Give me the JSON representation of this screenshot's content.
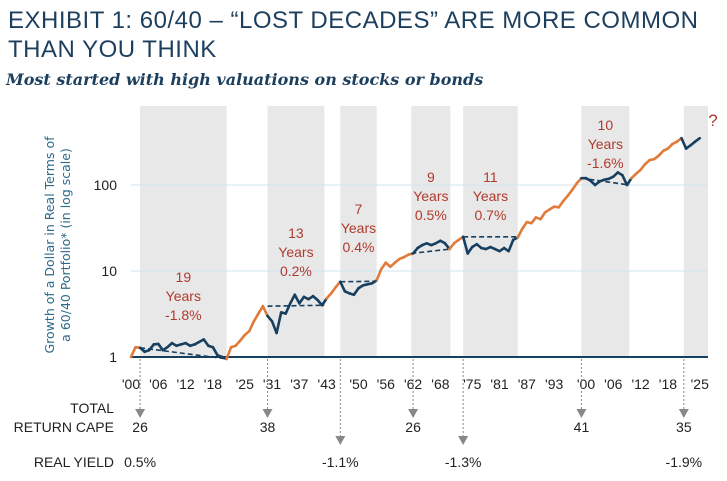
{
  "title": "EXHIBIT 1: 60/40 – “LOST DECADES” ARE MORE COMMON THAN YOU THINK",
  "subtitle": "Most started with high valuations on stocks or bonds",
  "chart_data": {
    "type": "line",
    "title": "EXHIBIT 1: 60/40 – “LOST DECADES” ARE MORE COMMON THAN YOU THINK",
    "ylabel_lines": [
      "Growth of a Dollar in Real Terms of",
      "a 60/40 Portfolio* (in log scale)"
    ],
    "yscale": "log",
    "ylim": [
      1,
      830
    ],
    "xlim": [
      1900,
      2027
    ],
    "yticks": [
      {
        "v": 1,
        "label": "1"
      },
      {
        "v": 10,
        "label": "10"
      },
      {
        "v": 100,
        "label": "100"
      }
    ],
    "xticks": [
      {
        "yr": 1900,
        "label": "'00"
      },
      {
        "yr": 1906,
        "label": "'06"
      },
      {
        "yr": 1912,
        "label": "'12"
      },
      {
        "yr": 1918,
        "label": "'18"
      },
      {
        "yr": 1925,
        "label": "'25"
      },
      {
        "yr": 1931,
        "label": "'31"
      },
      {
        "yr": 1937,
        "label": "'37"
      },
      {
        "yr": 1943,
        "label": "'43"
      },
      {
        "yr": 1950,
        "label": "'50"
      },
      {
        "yr": 1956,
        "label": "'56"
      },
      {
        "yr": 1962,
        "label": "'62"
      },
      {
        "yr": 1968,
        "label": "'68"
      },
      {
        "yr": 1975,
        "label": "'75"
      },
      {
        "yr": 1981,
        "label": "'81"
      },
      {
        "yr": 1987,
        "label": "'87"
      },
      {
        "yr": 1993,
        "label": "'93"
      },
      {
        "yr": 2000,
        "label": "'00"
      },
      {
        "yr": 2006,
        "label": "'06"
      },
      {
        "yr": 2012,
        "label": "'12"
      },
      {
        "yr": 2018,
        "label": "'18"
      },
      {
        "yr": 2025,
        "label": "'25"
      }
    ],
    "colors": {
      "growth": "#e07b39",
      "lost": "#173f5f",
      "shade": "#e8e8e8",
      "grid": "#cfe3ee",
      "annotation": "#b03a2e",
      "arrow": "#888888"
    },
    "series": [
      {
        "name": "60/40 portfolio (real, growth of $1)",
        "points": [
          [
            1900,
            1.0
          ],
          [
            1901,
            1.3
          ],
          [
            1902,
            1.28
          ],
          [
            1903,
            1.15
          ],
          [
            1904,
            1.2
          ],
          [
            1905,
            1.4
          ],
          [
            1906,
            1.42
          ],
          [
            1907,
            1.2
          ],
          [
            1908,
            1.3
          ],
          [
            1909,
            1.45
          ],
          [
            1910,
            1.35
          ],
          [
            1911,
            1.4
          ],
          [
            1912,
            1.45
          ],
          [
            1913,
            1.35
          ],
          [
            1914,
            1.4
          ],
          [
            1915,
            1.5
          ],
          [
            1916,
            1.6
          ],
          [
            1917,
            1.35
          ],
          [
            1918,
            1.3
          ],
          [
            1919,
            1.05
          ],
          [
            1920,
            1.0
          ],
          [
            1921,
            0.95
          ],
          [
            1922,
            1.3
          ],
          [
            1923,
            1.35
          ],
          [
            1924,
            1.55
          ],
          [
            1925,
            1.8
          ],
          [
            1926,
            2.0
          ],
          [
            1927,
            2.6
          ],
          [
            1928,
            3.2
          ],
          [
            1929,
            3.9
          ],
          [
            1930,
            3.0
          ],
          [
            1931,
            2.6
          ],
          [
            1932,
            1.9
          ],
          [
            1933,
            3.3
          ],
          [
            1934,
            3.2
          ],
          [
            1935,
            4.2
          ],
          [
            1936,
            5.3
          ],
          [
            1937,
            4.2
          ],
          [
            1938,
            5.0
          ],
          [
            1939,
            4.7
          ],
          [
            1940,
            5.1
          ],
          [
            1941,
            4.6
          ],
          [
            1942,
            4.0
          ],
          [
            1943,
            4.8
          ],
          [
            1944,
            5.5
          ],
          [
            1945,
            6.5
          ],
          [
            1946,
            7.5
          ],
          [
            1947,
            5.8
          ],
          [
            1948,
            5.5
          ],
          [
            1949,
            5.3
          ],
          [
            1950,
            6.3
          ],
          [
            1951,
            6.8
          ],
          [
            1952,
            7.0
          ],
          [
            1953,
            7.2
          ],
          [
            1954,
            7.8
          ],
          [
            1955,
            10.5
          ],
          [
            1956,
            12.5
          ],
          [
            1957,
            11.2
          ],
          [
            1958,
            12.5
          ],
          [
            1959,
            13.8
          ],
          [
            1960,
            14.5
          ],
          [
            1961,
            15.5
          ],
          [
            1962,
            16.0
          ],
          [
            1963,
            18.5
          ],
          [
            1964,
            20.0
          ],
          [
            1965,
            21.0
          ],
          [
            1966,
            20.0
          ],
          [
            1967,
            21.0
          ],
          [
            1968,
            22.5
          ],
          [
            1969,
            21.0
          ],
          [
            1970,
            18.0
          ],
          [
            1971,
            21.0
          ],
          [
            1972,
            23.0
          ],
          [
            1973,
            25.0
          ],
          [
            1974,
            16.0
          ],
          [
            1975,
            19.0
          ],
          [
            1976,
            20.5
          ],
          [
            1977,
            18.5
          ],
          [
            1978,
            18.0
          ],
          [
            1979,
            19.0
          ],
          [
            1980,
            18.0
          ],
          [
            1981,
            17.0
          ],
          [
            1982,
            18.5
          ],
          [
            1983,
            17.0
          ],
          [
            1984,
            23.0
          ],
          [
            1985,
            24.5
          ],
          [
            1986,
            31.0
          ],
          [
            1987,
            37.0
          ],
          [
            1988,
            36.0
          ],
          [
            1989,
            42.0
          ],
          [
            1990,
            40.0
          ],
          [
            1991,
            48.0
          ],
          [
            1992,
            52.0
          ],
          [
            1993,
            56.0
          ],
          [
            1994,
            55.0
          ],
          [
            1995,
            65.0
          ],
          [
            1996,
            75.0
          ],
          [
            1997,
            88.0
          ],
          [
            1998,
            105.0
          ],
          [
            1999,
            120.0
          ],
          [
            2000,
            120.0
          ],
          [
            2001,
            112.0
          ],
          [
            2002,
            100.0
          ],
          [
            2003,
            110.0
          ],
          [
            2004,
            115.0
          ],
          [
            2005,
            118.0
          ],
          [
            2006,
            125.0
          ],
          [
            2007,
            140.0
          ],
          [
            2008,
            130.0
          ],
          [
            2009,
            100.0
          ],
          [
            2010,
            120.0
          ],
          [
            2011,
            135.0
          ],
          [
            2012,
            150.0
          ],
          [
            2013,
            175.0
          ],
          [
            2014,
            195.0
          ],
          [
            2015,
            200.0
          ],
          [
            2016,
            220.0
          ],
          [
            2017,
            250.0
          ],
          [
            2018,
            265.0
          ],
          [
            2019,
            300.0
          ],
          [
            2020,
            320.0
          ],
          [
            2021,
            350.0
          ],
          [
            2022,
            265.0
          ],
          [
            2023,
            290.0
          ],
          [
            2024,
            320.0
          ],
          [
            2025,
            350.0
          ]
        ]
      }
    ],
    "lost_decades": [
      {
        "start": 1902,
        "end": 1921,
        "years": "19",
        "label_years": "Years",
        "rate": "-1.8%",
        "v_start": 1.28,
        "v_end": 0.95
      },
      {
        "start": 1930,
        "end": 1942.5,
        "years": "13",
        "label_years": "Years",
        "rate": "0.2%",
        "v_start": 3.9,
        "v_end": 4.0
      },
      {
        "start": 1946,
        "end": 1954,
        "years": "7",
        "label_years": "Years",
        "rate": "0.4%",
        "v_start": 7.5,
        "v_end": 7.6
      },
      {
        "start": 1961.6,
        "end": 1970.2,
        "years": "9",
        "label_years": "Years",
        "rate": "0.5%",
        "v_start": 16.0,
        "v_end": 18.0
      },
      {
        "start": 1973,
        "end": 1985,
        "years": "11",
        "label_years": "Years",
        "rate": "0.7%",
        "v_start": 25.0,
        "v_end": 25.0
      },
      {
        "start": 1999,
        "end": 2009.5,
        "years": "10",
        "label_years": "Years",
        "rate": "-1.6%",
        "v_start": 120.0,
        "v_end": 100.0
      },
      {
        "start": 2021.5,
        "end": 2027,
        "years": "?",
        "label_years": "",
        "rate": "",
        "v_start": null,
        "v_end": null
      }
    ],
    "rows": {
      "cape_label": [
        "TOTAL",
        "RETURN CAPE"
      ],
      "real_yield_label": "REAL YIELD",
      "cape": [
        {
          "yr": 1902,
          "value": "26"
        },
        {
          "yr": 1930,
          "value": "38"
        },
        {
          "yr": 1962,
          "value": "26"
        },
        {
          "yr": 1999,
          "value": "41"
        },
        {
          "yr": 2021.5,
          "value": "35"
        }
      ],
      "real_yield": [
        {
          "yr": 1902,
          "value": "0.5%"
        },
        {
          "yr": 1946,
          "value": "-1.1%"
        },
        {
          "yr": 1973,
          "value": "-1.3%"
        },
        {
          "yr": 2021.5,
          "value": "-1.9%"
        }
      ]
    }
  }
}
